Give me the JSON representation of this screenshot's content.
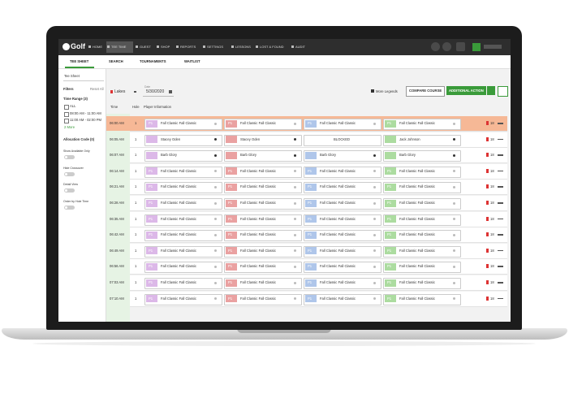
{
  "nav": {
    "logo": "Golf",
    "items": [
      "HOME",
      "TEE TIME",
      "GUEST",
      "SHOP",
      "REPORTS",
      "SETTINGS",
      "LESSONS",
      "LOST & FOUND",
      "AUDIT"
    ]
  },
  "tabs": [
    "TEE SHEET",
    "SEARCH",
    "TOURNAMENTS",
    "WAITLIST"
  ],
  "sidebar": {
    "view": "Tee Sheet",
    "filters": "Filters",
    "reset": "Reset All",
    "time_range": "Time Range (3)",
    "time_options": [
      "ALL",
      "08:00 AM - 11:00 AM",
      "11:00 AM - 02:00 PM"
    ],
    "more": "2 More",
    "allocation": "Allocation Code (0)",
    "toggles": [
      "Show Available Only",
      "Hide Crossover",
      "Detail View",
      "Order by Hole Time"
    ]
  },
  "toolbar": {
    "course": "Lakes",
    "date_label": "Date",
    "date": "5/30/2020",
    "legends": "More Legends",
    "compare": "COMPARE COURSE",
    "action": "ADDITIONAL ACTION"
  },
  "table": {
    "headers": [
      "Time",
      "Hole",
      "Player Information"
    ],
    "badge": "P1",
    "rows": [
      {
        "time": "06:00 AM",
        "hole": "1",
        "players": [
          "Fall Classic Fall Classic",
          "Fall Classic Fall Classic",
          "Fall Classic Fall Classic",
          "Fall Classic Fall Classic"
        ],
        "count": "18"
      },
      {
        "time": "06:05 AM",
        "hole": "1",
        "players": [
          "Stacey Oden",
          "Stacey Oden",
          "BLOCKED",
          "Jack Johnson"
        ],
        "count": "18"
      },
      {
        "time": "06:07 AM",
        "hole": "1",
        "players": [
          "Barb Glory",
          "Barb Glory",
          "Barb Glory",
          "Barb Glory"
        ],
        "count": "18"
      },
      {
        "time": "06:14 AM",
        "hole": "1",
        "players": [
          "Fall Classic Fall Classic",
          "Fall Classic Fall Classic",
          "Fall Classic Fall Classic",
          "Fall Classic Fall Classic"
        ],
        "count": "18"
      },
      {
        "time": "06:21 AM",
        "hole": "1",
        "players": [
          "Fall Classic Fall Classic",
          "Fall Classic Fall Classic",
          "Fall Classic Fall Classic",
          "Fall Classic Fall Classic"
        ],
        "count": "18"
      },
      {
        "time": "06:28 AM",
        "hole": "1",
        "players": [
          "Fall Classic Fall Classic",
          "Fall Classic Fall Classic",
          "Fall Classic Fall Classic",
          "Fall Classic Fall Classic"
        ],
        "count": "18"
      },
      {
        "time": "06:35 AM",
        "hole": "1",
        "players": [
          "Fall Classic Fall Classic",
          "Fall Classic Fall Classic",
          "Fall Classic Fall Classic",
          "Fall Classic Fall Classic"
        ],
        "count": "18"
      },
      {
        "time": "06:42 AM",
        "hole": "1",
        "players": [
          "Fall Classic Fall Classic",
          "Fall Classic Fall Classic",
          "Fall Classic Fall Classic",
          "Fall Classic Fall Classic"
        ],
        "count": "18"
      },
      {
        "time": "06:49 AM",
        "hole": "1",
        "players": [
          "Fall Classic Fall Classic",
          "Fall Classic Fall Classic",
          "Fall Classic Fall Classic",
          "Fall Classic Fall Classic"
        ],
        "count": "18"
      },
      {
        "time": "06:56 AM",
        "hole": "1",
        "players": [
          "Fall Classic Fall Classic",
          "Fall Classic Fall Classic",
          "Fall Classic Fall Classic",
          "Fall Classic Fall Classic"
        ],
        "count": "18"
      },
      {
        "time": "07:03 AM",
        "hole": "1",
        "players": [
          "Fall Classic Fall Classic",
          "Fall Classic Fall Classic",
          "Fall Classic Fall Classic",
          "Fall Classic Fall Classic"
        ],
        "count": "18"
      },
      {
        "time": "07:10 AM",
        "hole": "1",
        "players": [
          "Fall Classic Fall Classic",
          "Fall Classic Fall Classic",
          "Fall Classic Fall Classic",
          "Fall Classic Fall Classic"
        ],
        "count": "18"
      }
    ]
  }
}
